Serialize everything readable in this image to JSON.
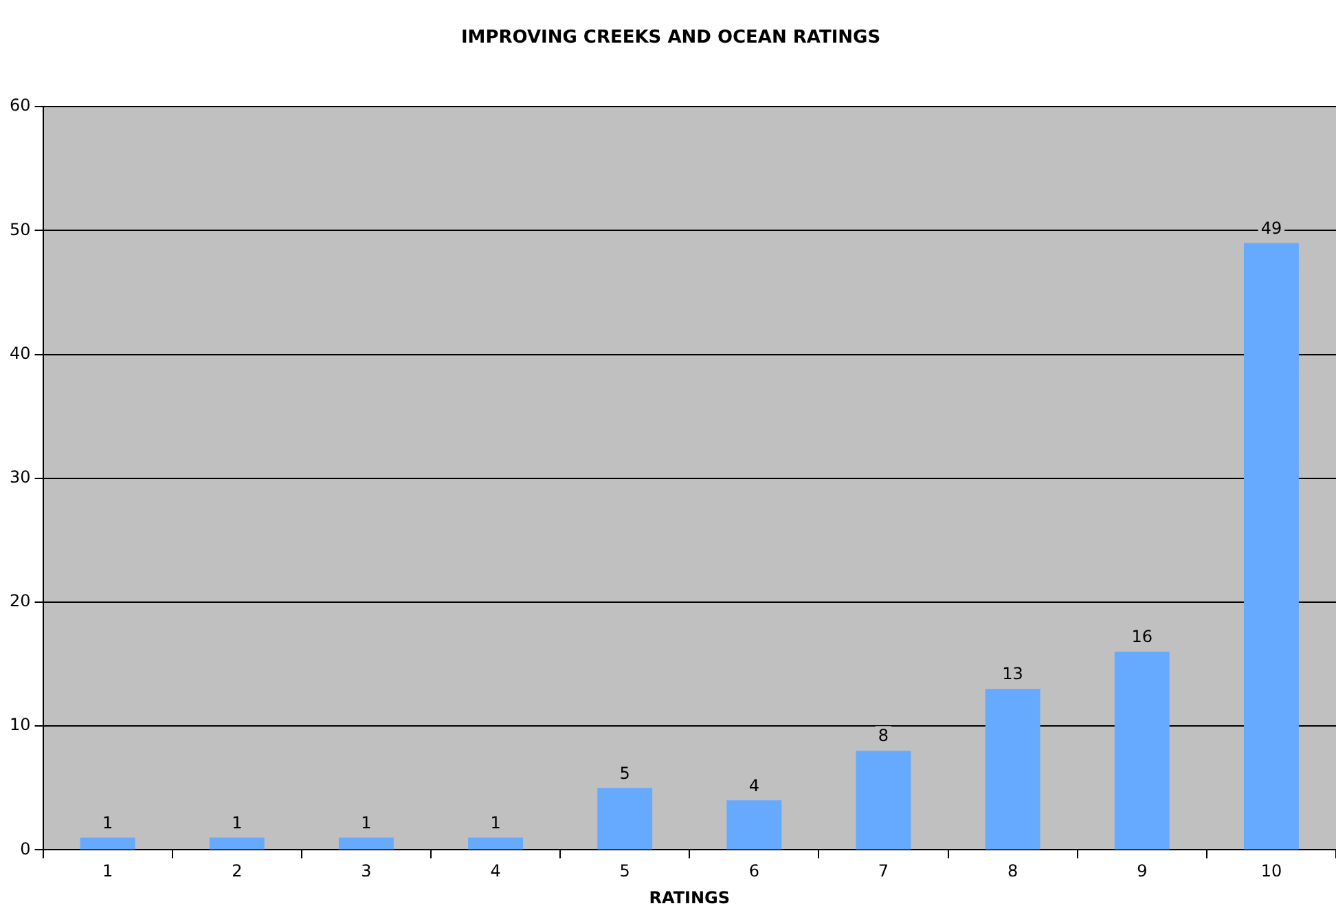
{
  "chart_data": {
    "type": "bar",
    "title": "IMPROVING CREEKS AND OCEAN RATINGS",
    "xlabel": "RATINGS",
    "categories": [
      "1",
      "2",
      "3",
      "4",
      "5",
      "6",
      "7",
      "8",
      "9",
      "10"
    ],
    "values": [
      1,
      1,
      1,
      1,
      5,
      4,
      8,
      13,
      16,
      49
    ],
    "color": "#66aaff",
    "ylim": [
      0,
      60
    ],
    "yticks": [
      0,
      10,
      20,
      30,
      40,
      50,
      60
    ],
    "grid": "y",
    "data_labels": true
  }
}
